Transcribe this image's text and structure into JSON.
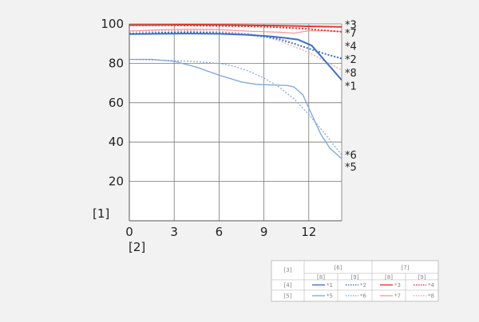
{
  "chart_data": {
    "type": "line",
    "xlabel": "[2]",
    "ylabel": "[1]",
    "xlim": [
      0,
      14.2
    ],
    "ylim": [
      0,
      100
    ],
    "xticks": [
      0,
      3,
      6,
      9,
      12
    ],
    "yticks": [
      20,
      40,
      60,
      80,
      100
    ],
    "grid": true,
    "colors": {
      "red": "#e8322d",
      "pink": "#f2989a",
      "blue": "#3a6fd0",
      "lightblue": "#7aa3e0"
    },
    "series": [
      {
        "name": "*1",
        "color": "#3a6fd0",
        "width": 2,
        "dash": "none",
        "x": [
          0,
          2,
          4,
          6,
          8,
          9.5,
          10.5,
          11.3,
          12.2,
          13,
          14.2
        ],
        "y": [
          94.8,
          95,
          95.1,
          95,
          94.4,
          93.6,
          92.8,
          92,
          89,
          82,
          71.5
        ]
      },
      {
        "name": "*2",
        "color": "#3a6fd0",
        "width": 2,
        "dash": "2,2",
        "x": [
          0,
          2,
          4,
          6,
          8,
          9,
          10,
          11,
          12,
          13,
          14.2
        ],
        "y": [
          95.1,
          95.5,
          95.8,
          95.4,
          94.4,
          93.6,
          92.3,
          90,
          87.5,
          85,
          82.4
        ]
      },
      {
        "name": "*3",
        "color": "#e8322d",
        "width": 2,
        "dash": "none",
        "x": [
          0,
          2,
          4,
          6,
          8,
          10,
          12,
          14.2
        ],
        "y": [
          99.4,
          99.5,
          99.6,
          99.5,
          99.3,
          99.1,
          98.8,
          98.5
        ]
      },
      {
        "name": "*4",
        "color": "#e8322d",
        "width": 2,
        "dash": "2,2",
        "x": [
          0,
          2,
          4,
          6,
          8,
          10,
          12,
          14.2
        ],
        "y": [
          99.3,
          99.3,
          99.2,
          99.0,
          98.8,
          98.3,
          97.4,
          96.0
        ]
      },
      {
        "name": "*5",
        "color": "#7aa3e0",
        "width": 1.3,
        "dash": "none",
        "x": [
          0,
          1.5,
          3,
          4.5,
          6,
          7.5,
          8.5,
          9.5,
          10.5,
          11,
          11.6,
          12.2,
          12.8,
          13.4,
          14.2
        ],
        "y": [
          82,
          82,
          81,
          78,
          74,
          70.5,
          69.3,
          69,
          68.8,
          68,
          64,
          54,
          44,
          37,
          31.5
        ]
      },
      {
        "name": "*6",
        "color": "#7aa3e0",
        "width": 1.2,
        "dash": "2,2",
        "x": [
          0,
          2,
          4,
          6,
          7,
          8,
          9,
          10,
          11,
          12,
          13,
          14.2
        ],
        "y": [
          82,
          81.6,
          81,
          80,
          78.5,
          76,
          72.5,
          68,
          62,
          54,
          45,
          33.5
        ]
      },
      {
        "name": "*7",
        "color": "#f2989a",
        "width": 1.3,
        "dash": "none",
        "x": [
          0,
          2,
          4,
          6,
          8,
          10,
          11,
          12,
          13,
          14.2
        ],
        "y": [
          96.4,
          97,
          97.3,
          97.1,
          96.3,
          95.8,
          95.3,
          96.5,
          96.5,
          96.2
        ]
      },
      {
        "name": "*8",
        "color": "#f2989a",
        "width": 1.2,
        "dash": "2,2",
        "x": [
          0,
          2,
          4,
          6,
          8,
          9,
          10,
          11,
          12,
          13,
          14.2
        ],
        "y": [
          96.2,
          96.4,
          96.5,
          96.2,
          95,
          93.7,
          91.5,
          88.5,
          85.5,
          81.5,
          76.5
        ]
      }
    ],
    "end_labels": [
      {
        "text": "*3",
        "y": 99.8
      },
      {
        "text": "*7",
        "y": 95.6
      },
      {
        "text": "*4",
        "y": 88.8
      },
      {
        "text": "*2",
        "y": 82.2
      },
      {
        "text": "*8",
        "y": 75.4
      },
      {
        "text": "*1",
        "y": 68.6
      },
      {
        "text": "*6",
        "y": 33.7
      },
      {
        "text": "*5",
        "y": 27.5
      }
    ],
    "legend": {
      "corner": "[3]",
      "groups": [
        "[6]",
        "[7]"
      ],
      "subheaders": [
        "[8]",
        "[9]",
        "[8]",
        "[9]"
      ],
      "rows": [
        {
          "label": "[4]",
          "entries": [
            "*1",
            "*2",
            "*3",
            "*4"
          ]
        },
        {
          "label": "[5]",
          "entries": [
            "*5",
            "*6",
            "*7",
            "*8"
          ]
        }
      ]
    }
  }
}
